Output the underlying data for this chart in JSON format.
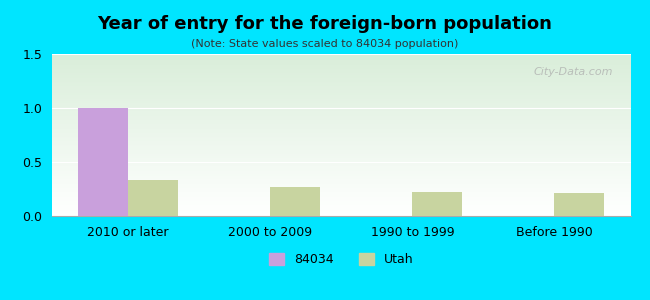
{
  "title": "Year of entry for the foreign-born population",
  "subtitle": "(Note: State values scaled to 84034 population)",
  "categories": [
    "2010 or later",
    "2000 to 2009",
    "1990 to 1999",
    "Before 1990"
  ],
  "values_84034": [
    1.0,
    0.0,
    0.0,
    0.0
  ],
  "values_utah": [
    0.33,
    0.27,
    0.22,
    0.21
  ],
  "color_84034": "#c9a0dc",
  "color_utah": "#c8d4a0",
  "background_outer": "#00e5ff",
  "background_inner_top": "#ffffff",
  "background_inner_bottom": "#d4edda",
  "ylim": [
    0,
    1.5
  ],
  "yticks": [
    0,
    0.5,
    1.0,
    1.5
  ],
  "bar_width": 0.35,
  "legend_label_84034": "84034",
  "legend_label_utah": "Utah",
  "watermark": "City-Data.com"
}
